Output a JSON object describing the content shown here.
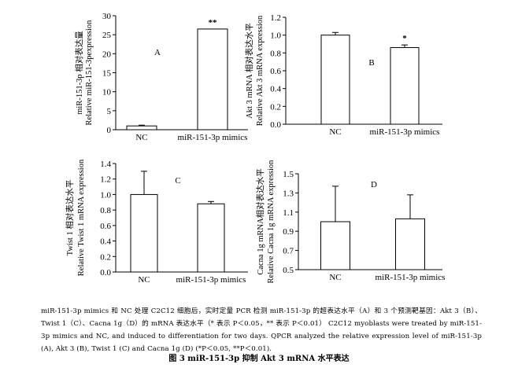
{
  "chart_data": [
    {
      "type": "bar",
      "panel": "A",
      "categories": [
        "NC",
        "miR-151-3p mimics"
      ],
      "values": [
        1.0,
        26.5
      ],
      "errors": [
        0.2,
        0
      ],
      "significance": [
        "",
        "**"
      ],
      "ylabel_cn": "miR-151-3p 相对表达量",
      "ylabel_en": "Relative miR-151-3pexpression",
      "ylim": [
        0,
        30
      ],
      "yticks": [
        0,
        5,
        10,
        15,
        20,
        25,
        30
      ],
      "ytick_labels": [
        "0",
        "5",
        "10",
        "15",
        "20",
        "25",
        "30"
      ]
    },
    {
      "type": "bar",
      "panel": "B",
      "categories": [
        "NC",
        "miR-151-3p mimics"
      ],
      "values": [
        1.0,
        0.86
      ],
      "errors": [
        0.03,
        0.03
      ],
      "significance": [
        "",
        "*"
      ],
      "ylabel_cn": "Akt 3 mRNA 相对表达水平",
      "ylabel_en": "Relative Akt 3 mRNA expression",
      "ylim": [
        0,
        1.2
      ],
      "yticks": [
        0,
        0.2,
        0.4,
        0.6,
        0.8,
        1.0,
        1.2
      ],
      "ytick_labels": [
        "0.0",
        "0.2",
        "0.4",
        "0.6",
        "0.8",
        "1.0",
        "1.2"
      ]
    },
    {
      "type": "bar",
      "panel": "C",
      "categories": [
        "NC",
        "miR-151-3p mimics"
      ],
      "values": [
        1.0,
        0.88
      ],
      "errors": [
        0.3,
        0.03
      ],
      "significance": [
        "",
        ""
      ],
      "ylabel_cn": "Twist 1 相对表达水平",
      "ylabel_en": "Relative Twist 1 mRNA expression",
      "ylim": [
        0,
        1.4
      ],
      "yticks": [
        0,
        0.2,
        0.4,
        0.6,
        0.8,
        1.0,
        1.2,
        1.4
      ],
      "ytick_labels": [
        "0.0",
        "0.2",
        "0.4",
        "0.6",
        "0.8",
        "1.0",
        "1.2",
        "1.4"
      ]
    },
    {
      "type": "bar",
      "panel": "D",
      "categories": [
        "NC",
        "miR-151-3p mimics"
      ],
      "values": [
        1.0,
        1.03
      ],
      "errors": [
        0.37,
        0.25
      ],
      "significance": [
        "",
        ""
      ],
      "ylabel_cn": "Cacna 1g mRNA相对表达水平",
      "ylabel_en": "Relative Cacna 1g mRNA expression",
      "ylim": [
        0.5,
        1.5
      ],
      "yticks": [
        0.5,
        0.7,
        0.9,
        1.1,
        1.3,
        1.5
      ],
      "ytick_labels": [
        "0.5",
        "0.7",
        "0.9",
        "1.1",
        "1.3",
        "1.5"
      ]
    }
  ],
  "caption": "miR-151-3p mimics 和 NC 处理 C2C12 细胞后，实时定量 PCR 检测 miR-151-3p 的超表达水平（A）和 3 个预测靶基因：Akt 3（B）、Twist 1（C）、Cacna 1g（D）的 mRNA 表达水平（* 表示 P＜0.05，** 表示 P＜0.01）  C2C12 myoblasts were treated by miR-151-3p mimics and NC, and induced to differentiation for two days. QPCR analyzed the relative expression level of miR-151-3p (A), Akt 3 (B), Twist 1 (C) and Cacna 1g (D) (*P＜0.05, **P＜0.01).",
  "figure_title": "图 3   miR-151-3p 抑制 Akt 3 mRNA 水平表达"
}
